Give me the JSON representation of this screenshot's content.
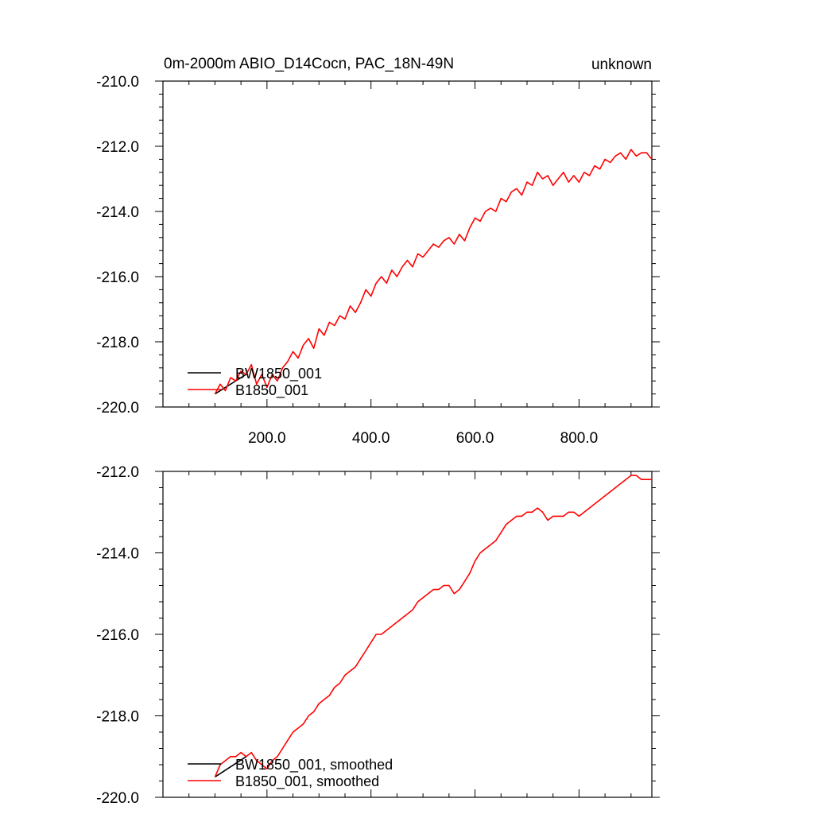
{
  "chart_data": [
    {
      "type": "line",
      "title": "0m-2000m ABIO_D14Cocn, PAC_18N-49N",
      "title_right": "unknown",
      "xlabel": "",
      "ylabel": "",
      "xlim": [
        0,
        940
      ],
      "ylim": [
        -220,
        -210
      ],
      "x_ticks": [
        200,
        400,
        600,
        800
      ],
      "x_tick_labels": [
        "200.0",
        "400.0",
        "600.0",
        "800.0"
      ],
      "y_ticks": [
        -220,
        -218,
        -216,
        -214,
        -212,
        -210
      ],
      "y_tick_labels": [
        "-220.0",
        "-218.0",
        "-216.0",
        "-214.0",
        "-212.0",
        "-210.0"
      ],
      "legend_position": "bottom-left",
      "series": [
        {
          "name": "BW1850_001",
          "color": "#000000",
          "x": [
            100,
            160
          ],
          "y": [
            -219.6,
            -219.0
          ]
        },
        {
          "name": "B1850_001",
          "color": "#ff0000",
          "x": [
            100,
            110,
            120,
            130,
            140,
            150,
            160,
            170,
            180,
            190,
            200,
            210,
            220,
            230,
            240,
            250,
            260,
            270,
            280,
            290,
            300,
            310,
            320,
            330,
            340,
            350,
            360,
            370,
            380,
            390,
            400,
            410,
            420,
            430,
            440,
            450,
            460,
            470,
            480,
            490,
            500,
            510,
            520,
            530,
            540,
            550,
            560,
            570,
            580,
            590,
            600,
            610,
            620,
            630,
            640,
            650,
            660,
            670,
            680,
            690,
            700,
            710,
            720,
            730,
            740,
            750,
            760,
            770,
            780,
            790,
            800,
            810,
            820,
            830,
            840,
            850,
            860,
            870,
            880,
            890,
            900,
            910,
            920,
            930,
            940
          ],
          "y": [
            -219.6,
            -219.3,
            -219.5,
            -219.1,
            -219.2,
            -218.9,
            -219.0,
            -218.7,
            -219.3,
            -219.0,
            -219.4,
            -219.0,
            -219.2,
            -218.8,
            -218.6,
            -218.3,
            -218.5,
            -218.1,
            -217.9,
            -218.2,
            -217.6,
            -217.8,
            -217.4,
            -217.5,
            -217.2,
            -217.3,
            -216.9,
            -217.1,
            -216.8,
            -216.4,
            -216.6,
            -216.2,
            -216.0,
            -216.2,
            -215.8,
            -216.0,
            -215.7,
            -215.5,
            -215.7,
            -215.3,
            -215.4,
            -215.2,
            -215.0,
            -215.1,
            -214.9,
            -214.8,
            -215.0,
            -214.7,
            -214.9,
            -214.5,
            -214.2,
            -214.3,
            -214.0,
            -213.9,
            -214.0,
            -213.6,
            -213.7,
            -213.4,
            -213.3,
            -213.5,
            -213.1,
            -213.2,
            -212.8,
            -213.0,
            -212.9,
            -213.2,
            -213.0,
            -212.8,
            -213.1,
            -212.9,
            -213.1,
            -212.8,
            -212.9,
            -212.6,
            -212.7,
            -212.4,
            -212.5,
            -212.3,
            -212.2,
            -212.4,
            -212.1,
            -212.3,
            -212.2,
            -212.2,
            -212.4
          ]
        }
      ]
    },
    {
      "type": "line",
      "title": "",
      "xlabel": "",
      "ylabel": "",
      "xlim": [
        0,
        940
      ],
      "ylim": [
        -220,
        -212
      ],
      "x_ticks": [
        200,
        400,
        600,
        800
      ],
      "x_tick_labels": [],
      "y_ticks": [
        -220,
        -218,
        -216,
        -214,
        -212
      ],
      "y_tick_labels": [
        "-220.0",
        "-218.0",
        "-216.0",
        "-214.0",
        "-212.0"
      ],
      "legend_position": "bottom-left",
      "series": [
        {
          "name": "BW1850_001, smoothed",
          "color": "#000000",
          "x": [
            100,
            160
          ],
          "y": [
            -219.5,
            -219.0
          ]
        },
        {
          "name": "B1850_001, smoothed",
          "color": "#ff0000",
          "x": [
            100,
            110,
            120,
            130,
            140,
            150,
            160,
            170,
            180,
            190,
            200,
            210,
            220,
            230,
            240,
            250,
            260,
            270,
            280,
            290,
            300,
            310,
            320,
            330,
            340,
            350,
            360,
            370,
            380,
            390,
            400,
            410,
            420,
            430,
            440,
            450,
            460,
            470,
            480,
            490,
            500,
            510,
            520,
            530,
            540,
            550,
            560,
            570,
            580,
            590,
            600,
            610,
            620,
            630,
            640,
            650,
            660,
            670,
            680,
            690,
            700,
            710,
            720,
            730,
            740,
            750,
            760,
            770,
            780,
            790,
            800,
            810,
            820,
            830,
            840,
            850,
            860,
            870,
            880,
            890,
            900,
            910,
            920,
            930,
            940
          ],
          "y": [
            -219.5,
            -219.2,
            -219.1,
            -219.0,
            -219.0,
            -218.9,
            -219.0,
            -218.9,
            -219.1,
            -219.2,
            -219.3,
            -219.1,
            -219.0,
            -218.8,
            -218.6,
            -218.4,
            -218.3,
            -218.2,
            -218.0,
            -217.9,
            -217.7,
            -217.6,
            -217.5,
            -217.3,
            -217.2,
            -217.0,
            -216.9,
            -216.8,
            -216.6,
            -216.4,
            -216.2,
            -216.0,
            -216.0,
            -215.9,
            -215.8,
            -215.7,
            -215.6,
            -215.5,
            -215.4,
            -215.2,
            -215.1,
            -215.0,
            -214.9,
            -214.9,
            -214.8,
            -214.8,
            -215.0,
            -214.9,
            -214.7,
            -214.5,
            -214.2,
            -214.0,
            -213.9,
            -213.8,
            -213.7,
            -213.5,
            -213.3,
            -213.2,
            -213.1,
            -213.1,
            -213.0,
            -213.0,
            -212.9,
            -213.0,
            -213.2,
            -213.1,
            -213.1,
            -213.1,
            -213.0,
            -213.0,
            -213.1,
            -213.0,
            -212.9,
            -212.8,
            -212.7,
            -212.6,
            -212.5,
            -212.4,
            -212.3,
            -212.2,
            -212.1,
            -212.1,
            -212.2,
            -212.2,
            -212.2
          ]
        }
      ]
    }
  ]
}
